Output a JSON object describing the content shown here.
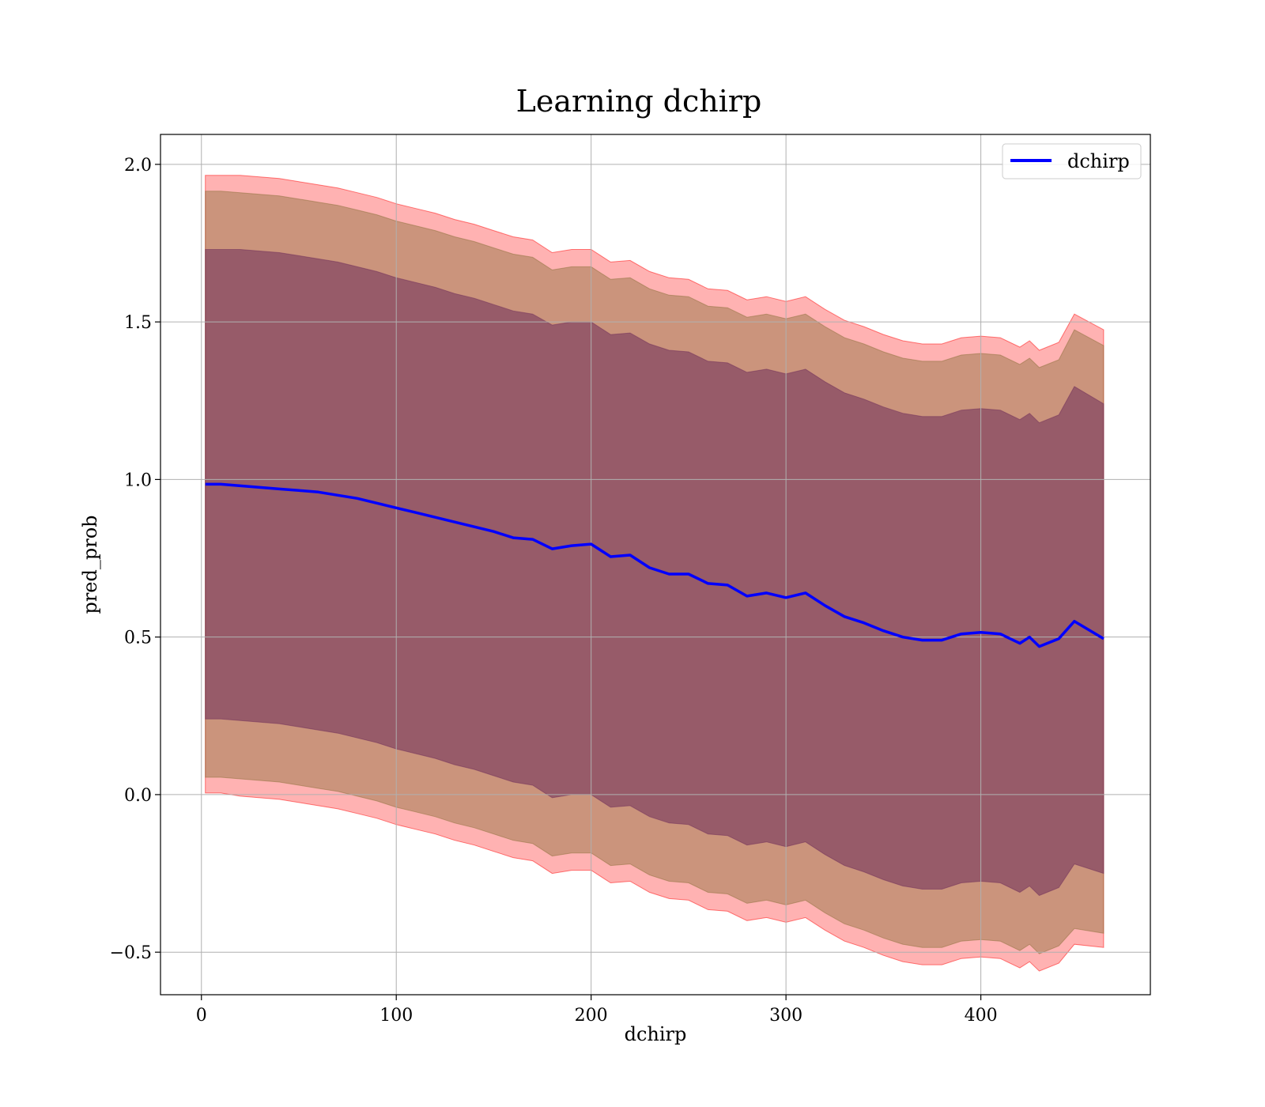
{
  "chart_data": {
    "type": "line",
    "title": "Learning dchirp",
    "xlabel": "dchirp",
    "ylabel": "pred_prob",
    "xlim": [
      -21,
      487
    ],
    "ylim": [
      -0.635,
      2.095
    ],
    "xticks": [
      0,
      100,
      200,
      300,
      400
    ],
    "xtick_labels": [
      "0",
      "100",
      "200",
      "300",
      "400"
    ],
    "yticks": [
      -0.5,
      0.0,
      0.5,
      1.0,
      1.5,
      2.0
    ],
    "ytick_labels": [
      "−0.5",
      "0.0",
      "0.5",
      "1.0",
      "1.5",
      "2.0"
    ],
    "grid": true,
    "legend_position": "top-right",
    "legend": [
      {
        "label": "dchirp",
        "color": "#0000ff"
      }
    ],
    "x": [
      2,
      10,
      20,
      30,
      40,
      50,
      60,
      70,
      80,
      90,
      100,
      110,
      120,
      130,
      140,
      150,
      160,
      170,
      180,
      190,
      200,
      210,
      220,
      230,
      240,
      250,
      260,
      270,
      280,
      290,
      300,
      310,
      320,
      330,
      340,
      350,
      360,
      370,
      380,
      390,
      400,
      410,
      420,
      425,
      430,
      440,
      448,
      463
    ],
    "series": [
      {
        "name": "dchirp",
        "color": "#0000ff",
        "values": [
          0.985,
          0.985,
          0.98,
          0.975,
          0.97,
          0.965,
          0.96,
          0.95,
          0.94,
          0.925,
          0.91,
          0.895,
          0.88,
          0.865,
          0.85,
          0.835,
          0.815,
          0.81,
          0.78,
          0.79,
          0.795,
          0.755,
          0.76,
          0.72,
          0.7,
          0.7,
          0.67,
          0.665,
          0.63,
          0.64,
          0.625,
          0.64,
          0.6,
          0.565,
          0.545,
          0.52,
          0.5,
          0.49,
          0.49,
          0.51,
          0.515,
          0.51,
          0.48,
          0.5,
          0.47,
          0.495,
          0.55,
          0.495
        ]
      }
    ],
    "bands": [
      {
        "name": "outer",
        "color": "#ff0000",
        "opacity": 0.3,
        "upper": [
          1.965,
          1.965,
          1.965,
          1.96,
          1.955,
          1.945,
          1.935,
          1.925,
          1.91,
          1.895,
          1.875,
          1.86,
          1.845,
          1.825,
          1.81,
          1.79,
          1.77,
          1.76,
          1.72,
          1.73,
          1.73,
          1.69,
          1.695,
          1.66,
          1.64,
          1.635,
          1.605,
          1.6,
          1.57,
          1.58,
          1.565,
          1.58,
          1.54,
          1.505,
          1.485,
          1.46,
          1.44,
          1.43,
          1.43,
          1.45,
          1.455,
          1.45,
          1.42,
          1.44,
          1.41,
          1.435,
          1.525,
          1.475
        ],
        "lower": [
          0.005,
          0.005,
          -0.005,
          -0.01,
          -0.015,
          -0.025,
          -0.035,
          -0.045,
          -0.06,
          -0.075,
          -0.095,
          -0.11,
          -0.125,
          -0.145,
          -0.16,
          -0.18,
          -0.2,
          -0.21,
          -0.25,
          -0.24,
          -0.24,
          -0.28,
          -0.275,
          -0.31,
          -0.33,
          -0.335,
          -0.365,
          -0.37,
          -0.4,
          -0.39,
          -0.405,
          -0.39,
          -0.43,
          -0.465,
          -0.485,
          -0.51,
          -0.53,
          -0.54,
          -0.54,
          -0.52,
          -0.515,
          -0.52,
          -0.55,
          -0.53,
          -0.56,
          -0.535,
          -0.475,
          -0.485
        ]
      },
      {
        "name": "middle",
        "color": "#8b6f3a",
        "opacity": 0.45,
        "upper": [
          1.915,
          1.915,
          1.91,
          1.905,
          1.9,
          1.89,
          1.88,
          1.87,
          1.855,
          1.84,
          1.82,
          1.805,
          1.79,
          1.77,
          1.755,
          1.735,
          1.715,
          1.705,
          1.665,
          1.675,
          1.675,
          1.635,
          1.64,
          1.605,
          1.585,
          1.58,
          1.55,
          1.545,
          1.515,
          1.525,
          1.51,
          1.525,
          1.485,
          1.45,
          1.43,
          1.405,
          1.385,
          1.375,
          1.375,
          1.395,
          1.4,
          1.395,
          1.365,
          1.385,
          1.355,
          1.38,
          1.475,
          1.425
        ],
        "lower": [
          0.055,
          0.055,
          0.05,
          0.045,
          0.04,
          0.03,
          0.02,
          0.01,
          -0.005,
          -0.02,
          -0.04,
          -0.055,
          -0.07,
          -0.09,
          -0.105,
          -0.125,
          -0.145,
          -0.155,
          -0.195,
          -0.185,
          -0.185,
          -0.225,
          -0.22,
          -0.255,
          -0.275,
          -0.28,
          -0.31,
          -0.315,
          -0.345,
          -0.335,
          -0.35,
          -0.335,
          -0.375,
          -0.41,
          -0.43,
          -0.455,
          -0.475,
          -0.485,
          -0.485,
          -0.465,
          -0.46,
          -0.465,
          -0.495,
          -0.475,
          -0.505,
          -0.48,
          -0.425,
          -0.44
        ]
      },
      {
        "name": "inner",
        "color": "#6e2c5a",
        "opacity": 0.55,
        "upper": [
          1.73,
          1.73,
          1.73,
          1.725,
          1.72,
          1.71,
          1.7,
          1.69,
          1.675,
          1.66,
          1.64,
          1.625,
          1.61,
          1.59,
          1.575,
          1.555,
          1.535,
          1.525,
          1.49,
          1.5,
          1.5,
          1.46,
          1.465,
          1.43,
          1.41,
          1.405,
          1.375,
          1.37,
          1.34,
          1.35,
          1.335,
          1.35,
          1.31,
          1.275,
          1.255,
          1.23,
          1.21,
          1.2,
          1.2,
          1.22,
          1.225,
          1.22,
          1.19,
          1.21,
          1.18,
          1.205,
          1.295,
          1.24
        ],
        "lower": [
          0.24,
          0.24,
          0.235,
          0.23,
          0.225,
          0.215,
          0.205,
          0.195,
          0.18,
          0.165,
          0.145,
          0.13,
          0.115,
          0.095,
          0.08,
          0.06,
          0.04,
          0.03,
          -0.01,
          0.0,
          0.0,
          -0.04,
          -0.035,
          -0.07,
          -0.09,
          -0.095,
          -0.125,
          -0.13,
          -0.16,
          -0.15,
          -0.165,
          -0.15,
          -0.19,
          -0.225,
          -0.245,
          -0.27,
          -0.29,
          -0.3,
          -0.3,
          -0.28,
          -0.275,
          -0.28,
          -0.31,
          -0.29,
          -0.32,
          -0.295,
          -0.22,
          -0.25
        ]
      }
    ]
  }
}
